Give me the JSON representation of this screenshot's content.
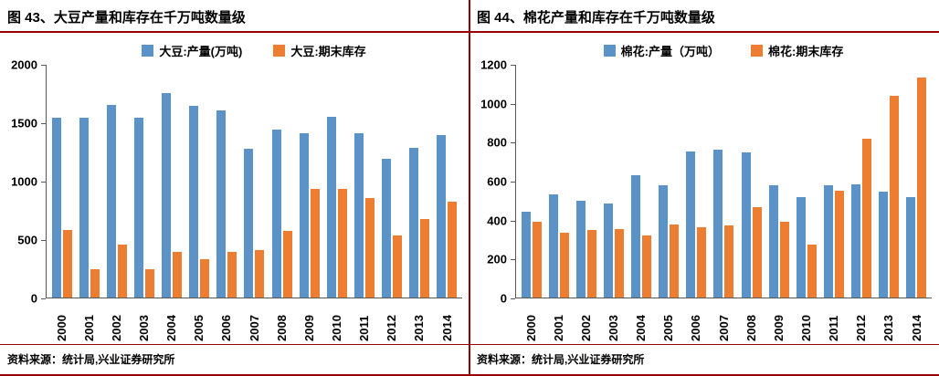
{
  "colors": {
    "accent_red": "#990000",
    "axis_gray": "#595959",
    "bar_blue": "#5B93C9",
    "bar_orange": "#ED7D31"
  },
  "panels": [
    {
      "title": "图 43、大豆产量和库存在千万吨数量级",
      "source": "资料来源：统计局,兴业证券研究所"
    },
    {
      "title": "图 44、棉花产量和库存在千万吨数量级",
      "source": "资料来源：统计局,兴业证券研究所"
    }
  ],
  "chart_data": [
    {
      "type": "bar",
      "title": "图 43、大豆产量和库存在千万吨数量级",
      "categories": [
        "2000",
        "2001",
        "2002",
        "2003",
        "2004",
        "2005",
        "2006",
        "2007",
        "2008",
        "2009",
        "2010",
        "2011",
        "2012",
        "2013",
        "2014"
      ],
      "series": [
        {
          "name": "大豆:产量(万吨)",
          "color": "#5B93C9",
          "values": [
            1540,
            1540,
            1650,
            1540,
            1750,
            1640,
            1600,
            1270,
            1440,
            1410,
            1550,
            1410,
            1190,
            1280,
            1390
          ]
        },
        {
          "name": "大豆:期末库存",
          "color": "#ED7D31",
          "values": [
            580,
            240,
            450,
            240,
            390,
            330,
            390,
            410,
            570,
            930,
            930,
            850,
            530,
            670,
            820
          ]
        }
      ],
      "xlabel": "",
      "ylabel": "",
      "ylim": [
        0,
        2000
      ],
      "yticks": [
        0,
        500,
        1000,
        1500,
        2000
      ],
      "legend_position": "top",
      "grid": false
    },
    {
      "type": "bar",
      "title": "图 44、棉花产量和库存在千万吨数量级",
      "categories": [
        "2000",
        "2001",
        "2002",
        "2003",
        "2004",
        "2005",
        "2006",
        "2007",
        "2008",
        "2009",
        "2010",
        "2011",
        "2012",
        "2013",
        "2014"
      ],
      "series": [
        {
          "name": "棉花:产量（万吨）",
          "color": "#5B93C9",
          "values": [
            440,
            530,
            495,
            485,
            630,
            575,
            750,
            760,
            745,
            575,
            515,
            575,
            580,
            545,
            515
          ]
        },
        {
          "name": "棉花:期末库存",
          "color": "#ED7D31",
          "values": [
            390,
            335,
            345,
            350,
            320,
            375,
            360,
            370,
            465,
            390,
            270,
            550,
            815,
            1035,
            1130
          ]
        }
      ],
      "xlabel": "",
      "ylabel": "",
      "ylim": [
        0,
        1200
      ],
      "yticks": [
        0,
        200,
        400,
        600,
        800,
        1000,
        1200
      ],
      "legend_position": "top",
      "grid": false
    }
  ]
}
